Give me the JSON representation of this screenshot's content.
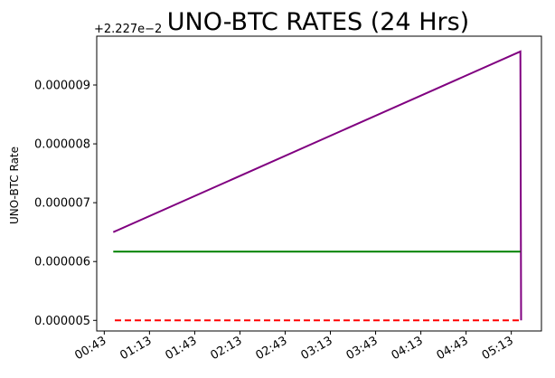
{
  "chart_data": {
    "type": "line",
    "title": "UNO-BTC RATES (24 Hrs)",
    "xlabel": "",
    "ylabel": "UNO-BTC Rate",
    "y_offset_label": "+2.227e−2",
    "x_tick_labels": [
      "00:43",
      "01:13",
      "01:43",
      "02:13",
      "02:43",
      "03:13",
      "03:43",
      "04:13",
      "04:43",
      "05:13"
    ],
    "x_tick_minutes": [
      43,
      73,
      103,
      133,
      163,
      193,
      223,
      253,
      283,
      313
    ],
    "xlim_minutes": [
      38,
      333
    ],
    "y_tick_labels": [
      "0.000005",
      "0.000006",
      "0.000007",
      "0.000008",
      "0.000009"
    ],
    "y_tick_values": [
      5e-06,
      6e-06,
      7e-06,
      8e-06,
      9e-06
    ],
    "ylim": [
      4.82e-06,
      9.83e-06
    ],
    "grid": false,
    "series": [
      {
        "color": "#800080",
        "style": "solid",
        "points": [
          [
            49,
            6.5e-06
          ],
          [
            319,
            9.57e-06
          ],
          [
            319.5,
            5e-06
          ]
        ]
      },
      {
        "color": "#008000",
        "style": "solid",
        "points": [
          [
            49,
            6.17e-06
          ],
          [
            319,
            6.17e-06
          ]
        ]
      },
      {
        "color": "#ff0000",
        "style": "dashed",
        "points": [
          [
            50,
            5e-06
          ],
          [
            319.5,
            5e-06
          ]
        ]
      }
    ]
  }
}
